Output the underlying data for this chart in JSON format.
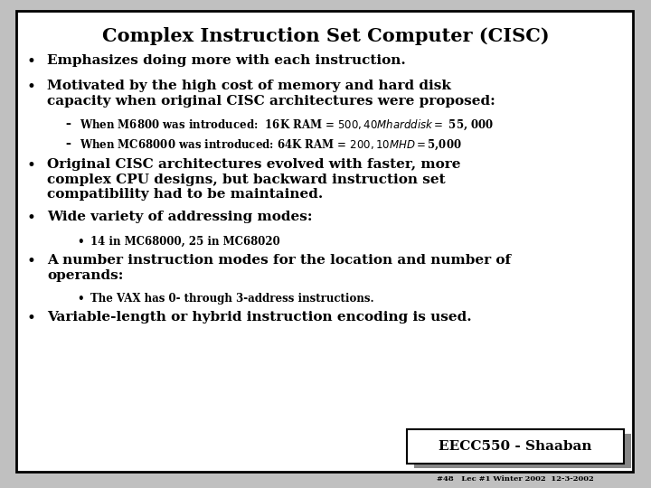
{
  "title": "Complex Instruction Set Computer (CISC)",
  "background_color": "#c0c0c0",
  "slide_bg": "#ffffff",
  "border_color": "#000000",
  "title_fontsize": 15,
  "body_fontsize": 11,
  "sub_fontsize": 8.5,
  "subsub_fontsize": 8.5,
  "footer_label": "EECC550 - Shaaban",
  "footer_sub": "#48   Lec #1 Winter 2002  12-3-2002",
  "bullets": [
    {
      "level": 1,
      "text": "Emphasizes doing more with each instruction.",
      "lines": 1
    },
    {
      "level": 1,
      "text": "Motivated by the high cost of memory and hard disk\ncapacity when original CISC architectures were proposed:",
      "lines": 2
    },
    {
      "level": 2,
      "text": "When M6800 was introduced:  16K RAM = $500, 40M hard disk = $ 55, 000",
      "lines": 1
    },
    {
      "level": 2,
      "text": "When MC68000 was introduced: 64K RAM = $200, 10M HD = $5,000",
      "lines": 1
    },
    {
      "level": 1,
      "text": "Original CISC architectures evolved with faster, more\ncomplex CPU designs, but backward instruction set\ncompatibility had to be maintained.",
      "lines": 3
    },
    {
      "level": 1,
      "text": "Wide variety of addressing modes:",
      "lines": 1
    },
    {
      "level": 3,
      "text": "14 in MC68000, 25 in MC68020",
      "lines": 1
    },
    {
      "level": 1,
      "text": "A number instruction modes for the location and number of\noperands:",
      "lines": 2
    },
    {
      "level": 3,
      "text": "The VAX has 0- through 3-address instructions.",
      "lines": 1
    },
    {
      "level": 1,
      "text": "Variable-length or hybrid instruction encoding is used.",
      "lines": 1
    }
  ]
}
